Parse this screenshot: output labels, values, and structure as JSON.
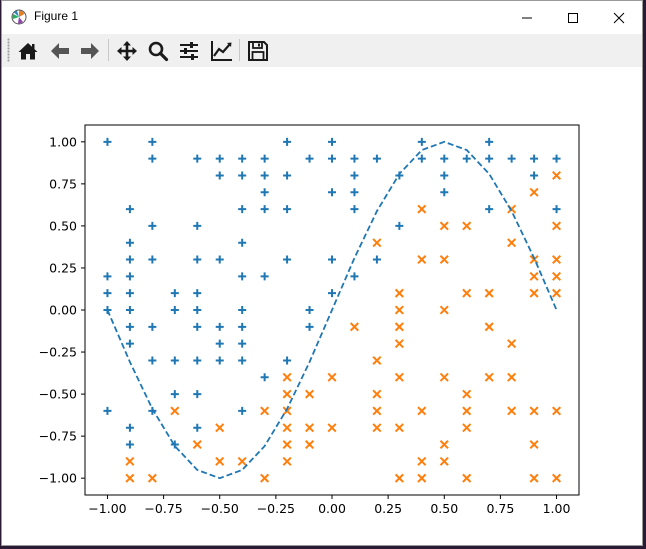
{
  "window": {
    "title": "Figure 1"
  },
  "toolbar": {
    "items": [
      {
        "name": "home",
        "icon": "home-icon"
      },
      {
        "name": "back",
        "icon": "arrow-left-icon"
      },
      {
        "name": "forward",
        "icon": "arrow-right-icon"
      },
      {
        "name": "pan",
        "icon": "move-icon"
      },
      {
        "name": "zoom",
        "icon": "magnifier-icon"
      },
      {
        "name": "subplots",
        "icon": "sliders-icon"
      },
      {
        "name": "customize",
        "icon": "line-chart-icon"
      },
      {
        "name": "save",
        "icon": "floppy-disk-icon"
      }
    ]
  },
  "chart_data": {
    "type": "scatter",
    "title": "",
    "xlabel": "",
    "ylabel": "",
    "xlim": [
      -1.1,
      1.1
    ],
    "ylim": [
      -1.1,
      1.1
    ],
    "xticks": [
      "−1.00",
      "−0.75",
      "−0.50",
      "−0.25",
      "0.00",
      "0.25",
      "0.50",
      "0.75",
      "1.00"
    ],
    "yticks": [
      "1.00",
      "0.75",
      "0.50",
      "0.25",
      "0.00",
      "−0.25",
      "−0.50",
      "−0.75",
      "−1.00"
    ],
    "grid": false,
    "colors": {
      "plus": "#1f77b4",
      "cross": "#ff7f0e",
      "curve": "#1f77b4"
    },
    "series": [
      {
        "marker": "plus",
        "points": [
          [
            -1.0,
            1.0
          ],
          [
            -0.8,
            1.0
          ],
          [
            -0.8,
            0.9
          ],
          [
            -0.6,
            0.9
          ],
          [
            -0.5,
            0.9
          ],
          [
            -0.4,
            0.9
          ],
          [
            -0.3,
            0.9
          ],
          [
            -0.2,
            1.0
          ],
          [
            -0.1,
            0.9
          ],
          [
            0.0,
            1.0
          ],
          [
            0.0,
            0.9
          ],
          [
            0.1,
            0.9
          ],
          [
            0.2,
            0.9
          ],
          [
            0.4,
            1.0
          ],
          [
            0.4,
            0.9
          ],
          [
            0.5,
            0.9
          ],
          [
            0.6,
            0.9
          ],
          [
            0.7,
            1.0
          ],
          [
            0.7,
            0.9
          ],
          [
            0.8,
            0.9
          ],
          [
            0.9,
            0.9
          ],
          [
            1.0,
            0.9
          ],
          [
            -0.5,
            0.8
          ],
          [
            -0.4,
            0.8
          ],
          [
            -0.3,
            0.8
          ],
          [
            -0.2,
            0.8
          ],
          [
            0.1,
            0.8
          ],
          [
            0.3,
            0.8
          ],
          [
            0.5,
            0.8
          ],
          [
            0.9,
            0.8
          ],
          [
            -0.3,
            0.7
          ],
          [
            0.0,
            0.7
          ],
          [
            0.1,
            0.7
          ],
          [
            0.5,
            0.7
          ],
          [
            -0.9,
            0.6
          ],
          [
            -0.4,
            0.6
          ],
          [
            -0.3,
            0.6
          ],
          [
            -0.2,
            0.6
          ],
          [
            0.1,
            0.6
          ],
          [
            0.7,
            0.6
          ],
          [
            1.0,
            0.6
          ],
          [
            -0.8,
            0.5
          ],
          [
            -0.6,
            0.5
          ],
          [
            0.3,
            0.5
          ],
          [
            -0.9,
            0.4
          ],
          [
            -0.4,
            0.4
          ],
          [
            -0.9,
            0.3
          ],
          [
            -0.8,
            0.3
          ],
          [
            -0.6,
            0.3
          ],
          [
            -0.5,
            0.3
          ],
          [
            -0.2,
            0.3
          ],
          [
            0.0,
            0.3
          ],
          [
            0.2,
            0.3
          ],
          [
            -1.0,
            0.2
          ],
          [
            -0.9,
            0.2
          ],
          [
            -0.4,
            0.2
          ],
          [
            -0.3,
            0.2
          ],
          [
            0.1,
            0.2
          ],
          [
            -1.0,
            0.1
          ],
          [
            -0.9,
            0.1
          ],
          [
            -0.7,
            0.1
          ],
          [
            -0.6,
            0.1
          ],
          [
            0.0,
            0.1
          ],
          [
            -1.0,
            0.0
          ],
          [
            -0.9,
            0.0
          ],
          [
            -0.7,
            0.0
          ],
          [
            -0.6,
            0.0
          ],
          [
            -0.4,
            0.0
          ],
          [
            -0.1,
            0.0
          ],
          [
            -0.9,
            -0.1
          ],
          [
            -0.8,
            -0.1
          ],
          [
            -0.6,
            -0.1
          ],
          [
            -0.5,
            -0.1
          ],
          [
            -0.4,
            -0.1
          ],
          [
            -0.1,
            -0.1
          ],
          [
            -0.9,
            -0.2
          ],
          [
            -0.5,
            -0.2
          ],
          [
            -0.4,
            -0.2
          ],
          [
            -0.8,
            -0.3
          ],
          [
            -0.7,
            -0.3
          ],
          [
            -0.6,
            -0.3
          ],
          [
            -0.5,
            -0.3
          ],
          [
            -0.4,
            -0.3
          ],
          [
            -0.2,
            -0.3
          ],
          [
            -0.3,
            -0.4
          ],
          [
            -0.7,
            -0.5
          ],
          [
            -0.6,
            -0.5
          ],
          [
            -1.0,
            -0.6
          ],
          [
            -0.8,
            -0.6
          ],
          [
            -0.4,
            -0.6
          ],
          [
            -0.9,
            -0.7
          ],
          [
            -0.6,
            -0.7
          ],
          [
            -0.9,
            -0.8
          ],
          [
            -0.7,
            -0.8
          ]
        ]
      },
      {
        "marker": "cross",
        "points": [
          [
            1.0,
            0.8
          ],
          [
            0.9,
            0.7
          ],
          [
            0.4,
            0.6
          ],
          [
            0.8,
            0.6
          ],
          [
            0.5,
            0.5
          ],
          [
            0.6,
            0.5
          ],
          [
            1.0,
            0.5
          ],
          [
            0.2,
            0.4
          ],
          [
            0.8,
            0.4
          ],
          [
            0.4,
            0.3
          ],
          [
            0.5,
            0.3
          ],
          [
            0.9,
            0.3
          ],
          [
            1.0,
            0.3
          ],
          [
            0.9,
            0.2
          ],
          [
            1.0,
            0.2
          ],
          [
            0.3,
            0.1
          ],
          [
            0.6,
            0.1
          ],
          [
            0.7,
            0.1
          ],
          [
            0.9,
            0.1
          ],
          [
            1.0,
            0.1
          ],
          [
            0.3,
            0.0
          ],
          [
            0.5,
            0.0
          ],
          [
            0.1,
            -0.1
          ],
          [
            0.3,
            -0.1
          ],
          [
            0.7,
            -0.1
          ],
          [
            0.3,
            -0.2
          ],
          [
            0.8,
            -0.2
          ],
          [
            0.2,
            -0.3
          ],
          [
            -0.2,
            -0.4
          ],
          [
            0.0,
            -0.4
          ],
          [
            0.3,
            -0.4
          ],
          [
            0.5,
            -0.4
          ],
          [
            0.7,
            -0.4
          ],
          [
            0.8,
            -0.4
          ],
          [
            -0.2,
            -0.5
          ],
          [
            -0.1,
            -0.5
          ],
          [
            0.2,
            -0.5
          ],
          [
            0.6,
            -0.5
          ],
          [
            -0.7,
            -0.6
          ],
          [
            -0.3,
            -0.6
          ],
          [
            -0.2,
            -0.6
          ],
          [
            0.2,
            -0.6
          ],
          [
            0.4,
            -0.6
          ],
          [
            0.6,
            -0.6
          ],
          [
            0.8,
            -0.6
          ],
          [
            0.9,
            -0.6
          ],
          [
            1.0,
            -0.6
          ],
          [
            -0.5,
            -0.7
          ],
          [
            -0.2,
            -0.7
          ],
          [
            -0.1,
            -0.7
          ],
          [
            0.0,
            -0.7
          ],
          [
            0.2,
            -0.7
          ],
          [
            0.3,
            -0.7
          ],
          [
            0.6,
            -0.7
          ],
          [
            -0.6,
            -0.8
          ],
          [
            -0.2,
            -0.8
          ],
          [
            -0.1,
            -0.8
          ],
          [
            0.5,
            -0.8
          ],
          [
            0.9,
            -0.8
          ],
          [
            -0.9,
            -0.9
          ],
          [
            -0.5,
            -0.9
          ],
          [
            -0.4,
            -0.9
          ],
          [
            -0.2,
            -0.9
          ],
          [
            0.4,
            -0.9
          ],
          [
            0.5,
            -0.9
          ],
          [
            -0.9,
            -1.0
          ],
          [
            -0.8,
            -1.0
          ],
          [
            -0.3,
            -1.0
          ],
          [
            0.3,
            -1.0
          ],
          [
            0.4,
            -1.0
          ],
          [
            0.6,
            -1.0
          ],
          [
            0.9,
            -1.0
          ],
          [
            1.0,
            -1.0
          ]
        ]
      }
    ],
    "curve": {
      "style": "dashed",
      "x": [
        -1.0,
        -0.9,
        -0.8,
        -0.7,
        -0.6,
        -0.5,
        -0.4,
        -0.3,
        -0.2,
        -0.1,
        0.0,
        0.1,
        0.2,
        0.3,
        0.4,
        0.5,
        0.6,
        0.7,
        0.8,
        0.9,
        1.0
      ],
      "y": [
        0.0,
        -0.309,
        -0.588,
        -0.809,
        -0.951,
        -1.0,
        -0.951,
        -0.809,
        -0.588,
        -0.309,
        0.0,
        0.309,
        0.588,
        0.809,
        0.951,
        1.0,
        0.951,
        0.809,
        0.588,
        0.309,
        0.0
      ]
    }
  }
}
